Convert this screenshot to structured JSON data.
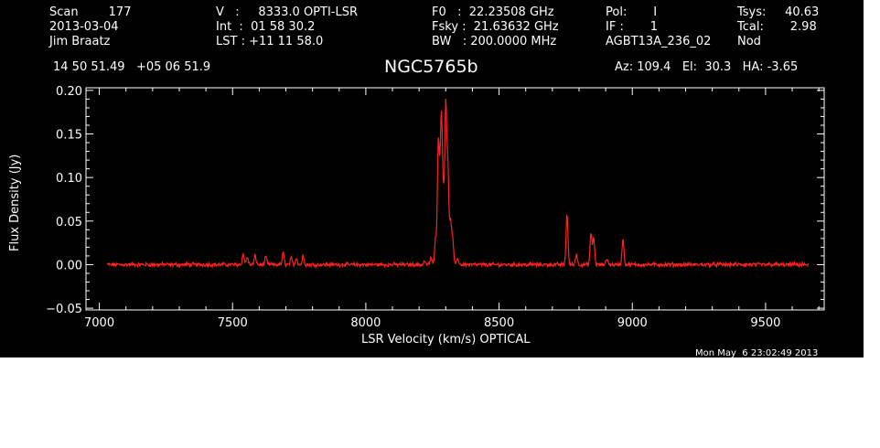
{
  "header": {
    "col1": [
      "Scan        177",
      "2013-03-04",
      "Jim Braatz"
    ],
    "col2": [
      "V   :     8333.0 OPTI-LSR",
      "Int  :  01 58 30.2",
      "LST : +11 11 58.0"
    ],
    "col3": [
      "F0   :  22.23508 GHz",
      "Fsky :  21.63632 GHz",
      "BW   : 200.0000 MHz"
    ],
    "col4": [
      "Pol:       I",
      "IF :       1",
      "AGBT13A_236_02"
    ],
    "col5": [
      "Tsys:     40.63",
      "Tcal:       2.98",
      "Nod"
    ],
    "coords": "14 50 51.49   +05 06 51.9",
    "source": "NGC5765b",
    "azelha": "Az: 109.4   El:  30.3   HA: -3.65",
    "timestamp": "Mon May  6 23:02:49 2013"
  },
  "chart_data": {
    "type": "line",
    "xlabel": "LSR Velocity (km/s) OPTICAL",
    "ylabel": "Flux Density (Jy)",
    "xlim": [
      6950,
      9720
    ],
    "ylim": [
      -0.052,
      0.203
    ],
    "xticks": [
      7000,
      7500,
      8000,
      8500,
      9000,
      9500
    ],
    "xtick_labels": [
      "7000",
      "7500",
      "8000",
      "8500",
      "9000",
      "9500"
    ],
    "yticks": [
      -0.05,
      0.0,
      0.05,
      0.1,
      0.15,
      0.2
    ],
    "ytick_labels": [
      "−0.05",
      "0.00",
      "0.05",
      "0.10",
      "0.15",
      "0.20"
    ],
    "line_color": "#ff2020",
    "x_range": [
      7030,
      9660
    ],
    "noise_level": 0.0018,
    "peaks": [
      {
        "x": 7540,
        "y": 0.012
      },
      {
        "x": 7555,
        "y": 0.009
      },
      {
        "x": 7585,
        "y": 0.01
      },
      {
        "x": 7625,
        "y": 0.009
      },
      {
        "x": 7690,
        "y": 0.013
      },
      {
        "x": 7720,
        "y": 0.007
      },
      {
        "x": 7740,
        "y": 0.008
      },
      {
        "x": 7765,
        "y": 0.01
      },
      {
        "x": 8220,
        "y": 0.004
      },
      {
        "x": 8245,
        "y": 0.008
      },
      {
        "x": 8262,
        "y": 0.03
      },
      {
        "x": 8272,
        "y": 0.14
      },
      {
        "x": 8280,
        "y": 0.09
      },
      {
        "x": 8285,
        "y": 0.13
      },
      {
        "x": 8292,
        "y": 0.06
      },
      {
        "x": 8300,
        "y": 0.18
      },
      {
        "x": 8308,
        "y": 0.11
      },
      {
        "x": 8318,
        "y": 0.05
      },
      {
        "x": 8326,
        "y": 0.028
      },
      {
        "x": 8345,
        "y": 0.007
      },
      {
        "x": 8755,
        "y": 0.058
      },
      {
        "x": 8790,
        "y": 0.012
      },
      {
        "x": 8845,
        "y": 0.035
      },
      {
        "x": 8855,
        "y": 0.03
      },
      {
        "x": 8905,
        "y": 0.007
      },
      {
        "x": 8965,
        "y": 0.03
      }
    ]
  }
}
